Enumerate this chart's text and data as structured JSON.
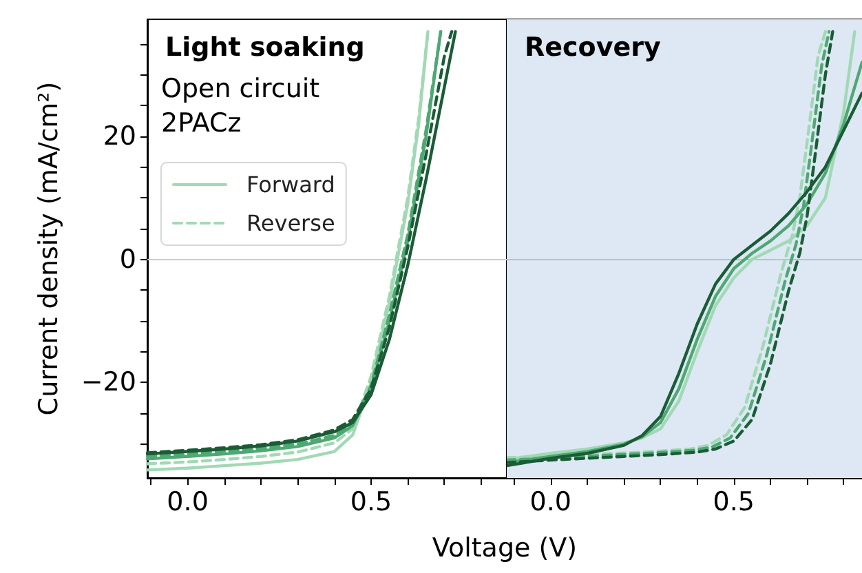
{
  "chart_data": [
    {
      "type": "line",
      "title": "Light soaking",
      "annotations": [
        "Open circuit",
        "2PACz"
      ],
      "xlabel": "Voltage (V)",
      "ylabel": "Current density (mA/cm²)",
      "legend": "top left",
      "marker": "none",
      "grid": false,
      "xlim": [
        -0.11,
        0.87
      ],
      "xticks": [
        {
          "value": -0.1,
          "label": null
        },
        {
          "value": 0,
          "label": "0.0"
        },
        {
          "value": 0.1,
          "label": null
        },
        {
          "value": 0.2,
          "label": null
        },
        {
          "value": 0.3,
          "label": null
        },
        {
          "value": 0.4,
          "label": null
        },
        {
          "value": 0.5,
          "label": "0.5"
        },
        {
          "value": 0.6,
          "label": null
        },
        {
          "value": 0.7,
          "label": null
        },
        {
          "value": 0.8,
          "label": null
        }
      ],
      "ylim": [
        -35.5,
        39
      ],
      "yticks": [
        {
          "value": -30,
          "label": null
        },
        {
          "value": -25,
          "label": null
        },
        {
          "value": -20,
          "label": "−20"
        },
        {
          "value": -15,
          "label": null
        },
        {
          "value": -10,
          "label": null
        },
        {
          "value": -5,
          "label": null
        },
        {
          "value": 0,
          "label": "0"
        },
        {
          "value": 5,
          "label": null
        },
        {
          "value": 10,
          "label": null
        },
        {
          "value": 15,
          "label": null
        },
        {
          "value": 20,
          "label": "20"
        },
        {
          "value": 25,
          "label": null
        },
        {
          "value": 30,
          "label": null
        },
        {
          "value": 35,
          "label": null
        }
      ],
      "ref_lines": [
        {
          "axis": "y",
          "value": 0,
          "color": "#cccccc"
        }
      ],
      "series": [
        {
          "name": "Forward",
          "color": "#a1d9b4",
          "line_style": "solid",
          "x": [
            -0.11,
            0,
            0.1,
            0.2,
            0.3,
            0.4,
            0.45,
            0.5,
            0.55,
            0.6,
            0.63,
            0.655
          ],
          "values": [
            -34.2,
            -33.9,
            -33.5,
            -33.1,
            -32.5,
            -31.2,
            -28.5,
            -20,
            -7,
            9,
            22,
            37
          ]
        },
        {
          "name": "Reverse",
          "color": "#a1d9b4",
          "line_style": "dashed",
          "x": [
            -0.11,
            0,
            0.1,
            0.2,
            0.3,
            0.4,
            0.45,
            0.5,
            0.55,
            0.6,
            0.63,
            0.655
          ],
          "values": [
            -33.2,
            -32.9,
            -32.5,
            -32,
            -31.3,
            -29.8,
            -27.5,
            -19,
            -6,
            10,
            23,
            37
          ]
        },
        {
          "color": "#4ea872",
          "line_style": "solid",
          "x": [
            -0.11,
            0,
            0.1,
            0.2,
            0.3,
            0.4,
            0.45,
            0.5,
            0.55,
            0.6,
            0.65,
            0.69
          ],
          "values": [
            -32.4,
            -32,
            -31.6,
            -31.1,
            -30.4,
            -29,
            -27,
            -21,
            -10,
            3,
            20,
            37
          ]
        },
        {
          "color": "#4ea872",
          "line_style": "dashed",
          "x": [
            -0.11,
            0,
            0.1,
            0.2,
            0.3,
            0.4,
            0.45,
            0.5,
            0.55,
            0.6,
            0.65,
            0.69
          ],
          "values": [
            -32,
            -31.6,
            -31.2,
            -30.7,
            -30,
            -28.6,
            -26.7,
            -20.5,
            -9,
            4,
            21,
            37
          ]
        },
        {
          "color": "#1a5c35",
          "line_style": "solid",
          "x": [
            -0.11,
            0,
            0.1,
            0.2,
            0.3,
            0.4,
            0.45,
            0.5,
            0.55,
            0.6,
            0.65,
            0.7,
            0.73
          ],
          "values": [
            -31.6,
            -31.2,
            -30.8,
            -30.3,
            -29.5,
            -28,
            -26.5,
            -22,
            -13,
            -1,
            13,
            28,
            37
          ]
        },
        {
          "color": "#1a5c35",
          "line_style": "dashed",
          "x": [
            -0.11,
            0,
            0.1,
            0.2,
            0.3,
            0.4,
            0.45,
            0.5,
            0.55,
            0.6,
            0.65,
            0.7,
            0.72
          ],
          "values": [
            -31.4,
            -31,
            -30.6,
            -30.1,
            -29.3,
            -27.7,
            -26,
            -21,
            -11,
            2,
            17,
            33,
            37
          ]
        }
      ]
    },
    {
      "type": "line",
      "title": "Recovery",
      "marker": "none",
      "grid": false,
      "tick_labels": "x",
      "xlim": [
        -0.12,
        0.85
      ],
      "xticks": [
        {
          "value": -0.1,
          "label": null
        },
        {
          "value": 0,
          "label": "0.0"
        },
        {
          "value": 0.1,
          "label": null
        },
        {
          "value": 0.2,
          "label": null
        },
        {
          "value": 0.3,
          "label": null
        },
        {
          "value": 0.4,
          "label": null
        },
        {
          "value": 0.5,
          "label": "0.5"
        },
        {
          "value": 0.6,
          "label": null
        },
        {
          "value": 0.7,
          "label": null
        },
        {
          "value": 0.8,
          "label": null
        }
      ],
      "ylim": [
        -35.5,
        39
      ],
      "yticks": [
        {
          "value": -30,
          "label": null
        },
        {
          "value": -25,
          "label": null
        },
        {
          "value": -20,
          "label": null
        },
        {
          "value": -15,
          "label": null
        },
        {
          "value": -10,
          "label": null
        },
        {
          "value": -5,
          "label": null
        },
        {
          "value": 0,
          "label": null
        },
        {
          "value": 5,
          "label": null
        },
        {
          "value": 10,
          "label": null
        },
        {
          "value": 15,
          "label": null
        },
        {
          "value": 20,
          "label": null
        },
        {
          "value": 25,
          "label": null
        },
        {
          "value": 30,
          "label": null
        },
        {
          "value": 35,
          "label": null
        }
      ],
      "ref_lines": [
        {
          "axis": "y",
          "value": 0,
          "color": "#b8c2cc"
        }
      ],
      "bands": [
        {
          "axis": "x",
          "from": -0.12,
          "to": 0.85,
          "color": "#dde8f4"
        }
      ],
      "series": [
        {
          "color": "#a1d9b4",
          "line_style": "solid",
          "x": [
            -0.12,
            0,
            0.1,
            0.2,
            0.25,
            0.3,
            0.35,
            0.4,
            0.45,
            0.5,
            0.55,
            0.6,
            0.65,
            0.7,
            0.75,
            0.8,
            0.83
          ],
          "values": [
            -32.5,
            -31.5,
            -30.8,
            -29.8,
            -29,
            -27.5,
            -23,
            -15,
            -7.5,
            -3,
            0,
            1.5,
            3,
            5.5,
            10,
            24,
            37
          ]
        },
        {
          "color": "#a1d9b4",
          "line_style": "dashed",
          "x": [
            -0.12,
            -0.02,
            0.08,
            0.18,
            0.28,
            0.38,
            0.43,
            0.48,
            0.53,
            0.58,
            0.63,
            0.66,
            0.68,
            0.7,
            0.73,
            0.75
          ],
          "values": [
            -32.2,
            -32,
            -31.7,
            -31.5,
            -31.2,
            -30.8,
            -30.2,
            -28.5,
            -24,
            -14,
            -2,
            4,
            10,
            19,
            33,
            37
          ]
        },
        {
          "color": "#4ea872",
          "line_style": "solid",
          "x": [
            -0.12,
            0,
            0.1,
            0.2,
            0.25,
            0.3,
            0.35,
            0.4,
            0.45,
            0.5,
            0.55,
            0.6,
            0.65,
            0.7,
            0.75,
            0.8,
            0.85
          ],
          "values": [
            -33,
            -32,
            -31.2,
            -30,
            -28.8,
            -26.5,
            -21,
            -13,
            -6,
            -1.5,
            1,
            3,
            5.5,
            9,
            14,
            22,
            32
          ]
        },
        {
          "color": "#4ea872",
          "line_style": "dashed",
          "x": [
            -0.12,
            -0.01,
            0.09,
            0.19,
            0.29,
            0.39,
            0.44,
            0.49,
            0.54,
            0.59,
            0.64,
            0.67,
            0.69,
            0.71,
            0.74,
            0.76
          ],
          "values": [
            -32.6,
            -32.3,
            -32,
            -31.7,
            -31.4,
            -31,
            -30.5,
            -29,
            -25,
            -15.5,
            -3.5,
            2.5,
            8.5,
            17.5,
            31.5,
            37
          ]
        },
        {
          "color": "#1a5c35",
          "line_style": "solid",
          "x": [
            -0.12,
            0,
            0.1,
            0.2,
            0.25,
            0.3,
            0.35,
            0.4,
            0.45,
            0.5,
            0.55,
            0.6,
            0.65,
            0.7,
            0.75,
            0.8,
            0.85
          ],
          "values": [
            -33.5,
            -32.3,
            -31.5,
            -30.2,
            -28.6,
            -25.5,
            -18.5,
            -10.5,
            -4,
            0,
            2.3,
            4.6,
            7.5,
            11,
            15,
            21,
            27
          ]
        },
        {
          "color": "#1a5c35",
          "line_style": "dashed",
          "x": [
            -0.12,
            0,
            0.1,
            0.2,
            0.3,
            0.4,
            0.45,
            0.5,
            0.55,
            0.6,
            0.65,
            0.68,
            0.7,
            0.72,
            0.75,
            0.77
          ],
          "values": [
            -33,
            -32.6,
            -32.3,
            -32,
            -31.7,
            -31.3,
            -30.8,
            -29.5,
            -26,
            -17,
            -5,
            1,
            7,
            16,
            30,
            37
          ]
        }
      ]
    }
  ]
}
